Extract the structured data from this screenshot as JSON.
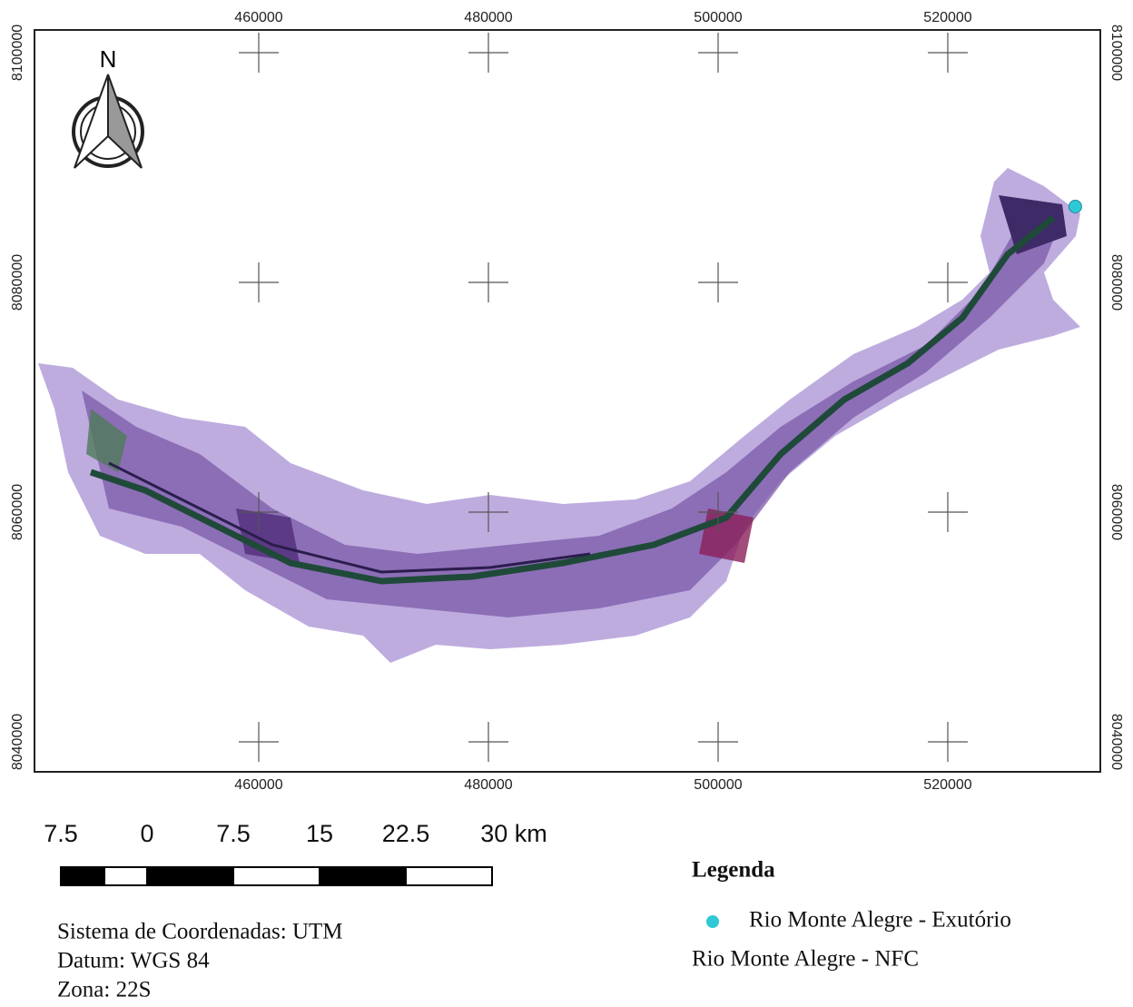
{
  "map": {
    "north": "N",
    "xlim": [
      440474,
      533281
    ],
    "ylim": [
      8037391,
      8101976
    ],
    "xticks": [
      460000,
      480000,
      500000,
      520000
    ],
    "yticks": [
      8040000,
      8060000,
      8080000,
      8100000
    ],
    "points": [
      {
        "name": "Rio Monte Alegre - Exutório",
        "color": "#2ec9d6",
        "x": 531100,
        "y": 8086600
      }
    ],
    "scale_bar": {
      "labels": [
        "7.5",
        "0",
        "7.5",
        "15",
        "22.5",
        "30 km"
      ]
    },
    "legend": {
      "title": "Legenda",
      "area": "Rio Monte Alegre - NFC"
    },
    "info": [
      "Sistema de Coordenadas: UTM",
      "Datum: WGS 84",
      "Zona: 22S"
    ]
  }
}
